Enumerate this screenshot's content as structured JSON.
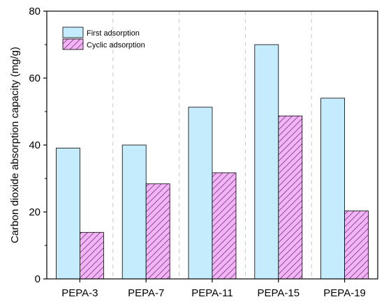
{
  "chart_data": {
    "type": "bar",
    "title": "",
    "xlabel": "",
    "ylabel": "Carbon dioxide absorption capacity (mg/g)",
    "ylim": [
      0,
      80
    ],
    "yticks": [
      0,
      20,
      40,
      60,
      80
    ],
    "categories": [
      "PEPA-3",
      "PEPA-7",
      "PEPA-11",
      "PEPA-15",
      "PEPA-19"
    ],
    "series": [
      {
        "name": "First adsorption",
        "values": [
          39.1,
          40.0,
          51.3,
          70.0,
          54.0
        ],
        "color": "#c5ecfd",
        "pattern": "solid"
      },
      {
        "name": "Cyclic adsorption",
        "values": [
          13.9,
          28.4,
          31.7,
          48.7,
          20.3
        ],
        "color": "#f3b4f6",
        "pattern": "diagonal-hatch"
      }
    ],
    "legend": "top-left",
    "grid": false,
    "category_separators": "dashed"
  }
}
